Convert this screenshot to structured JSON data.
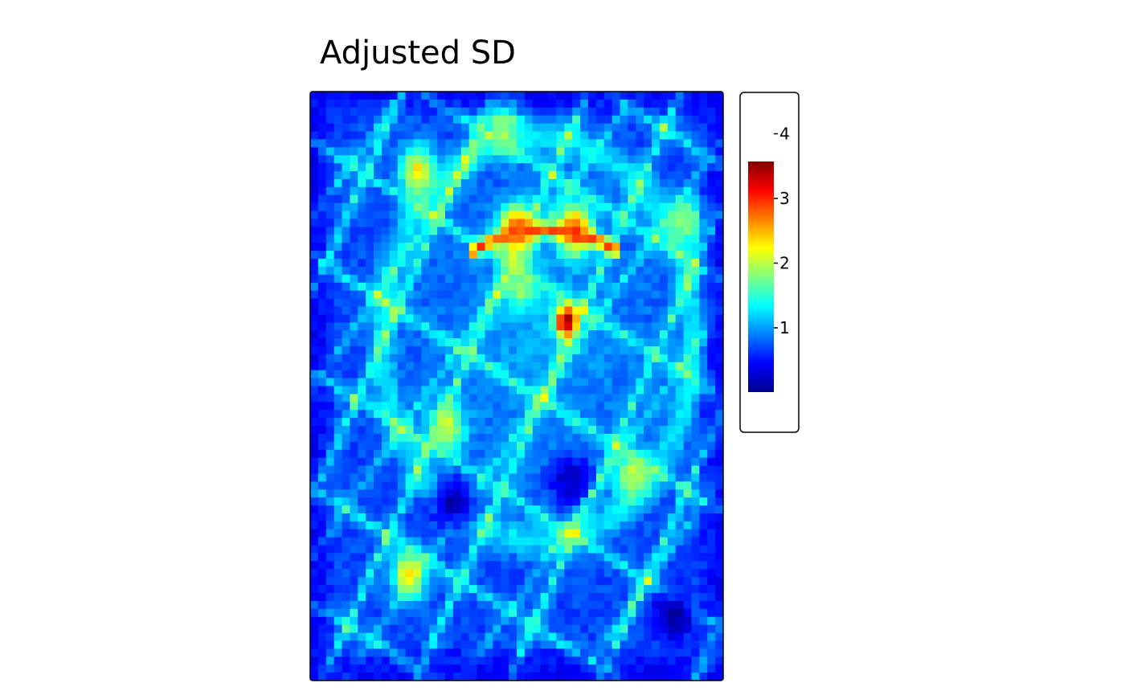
{
  "chart_data": {
    "type": "heatmap",
    "title": "Adjusted SD",
    "xlabel": "",
    "ylabel": "",
    "colorbar": {
      "ticks": [
        "1",
        "2",
        "3",
        "4"
      ],
      "tick_values": [
        1,
        2,
        3,
        4
      ],
      "range": [
        0,
        3.6
      ],
      "colors": [
        "#00008F",
        "#0000FF",
        "#0080FF",
        "#00FFFF",
        "#80FF80",
        "#FFFF00",
        "#FF8000",
        "#FF0000",
        "#800000"
      ]
    },
    "grid_resolution": [
      52,
      74
    ],
    "hotspots": [
      {
        "x": 0.62,
        "y": 0.39,
        "value": 3.6,
        "spread": 0.02
      },
      {
        "x": 0.5,
        "y": 0.235,
        "value": 2.9,
        "spread": 0.03
      },
      {
        "x": 0.64,
        "y": 0.235,
        "value": 2.9,
        "spread": 0.03
      },
      {
        "x": 0.26,
        "y": 0.135,
        "value": 2.3,
        "spread": 0.03
      },
      {
        "x": 0.24,
        "y": 0.82,
        "value": 2.3,
        "spread": 0.03
      },
      {
        "x": 0.33,
        "y": 0.57,
        "value": 2.1,
        "spread": 0.03
      },
      {
        "x": 0.78,
        "y": 0.65,
        "value": 2.0,
        "spread": 0.03
      },
      {
        "x": 0.51,
        "y": 0.33,
        "value": 1.9,
        "spread": 0.03
      },
      {
        "x": 0.47,
        "y": 0.06,
        "value": 1.9,
        "spread": 0.03
      },
      {
        "x": 0.91,
        "y": 0.22,
        "value": 1.9,
        "spread": 0.03
      }
    ],
    "lowspots": [
      {
        "x": 0.35,
        "y": 0.7,
        "value": 0.05
      },
      {
        "x": 0.63,
        "y": 0.66,
        "value": 0.2
      },
      {
        "x": 0.88,
        "y": 0.89,
        "value": 0.05
      }
    ]
  }
}
